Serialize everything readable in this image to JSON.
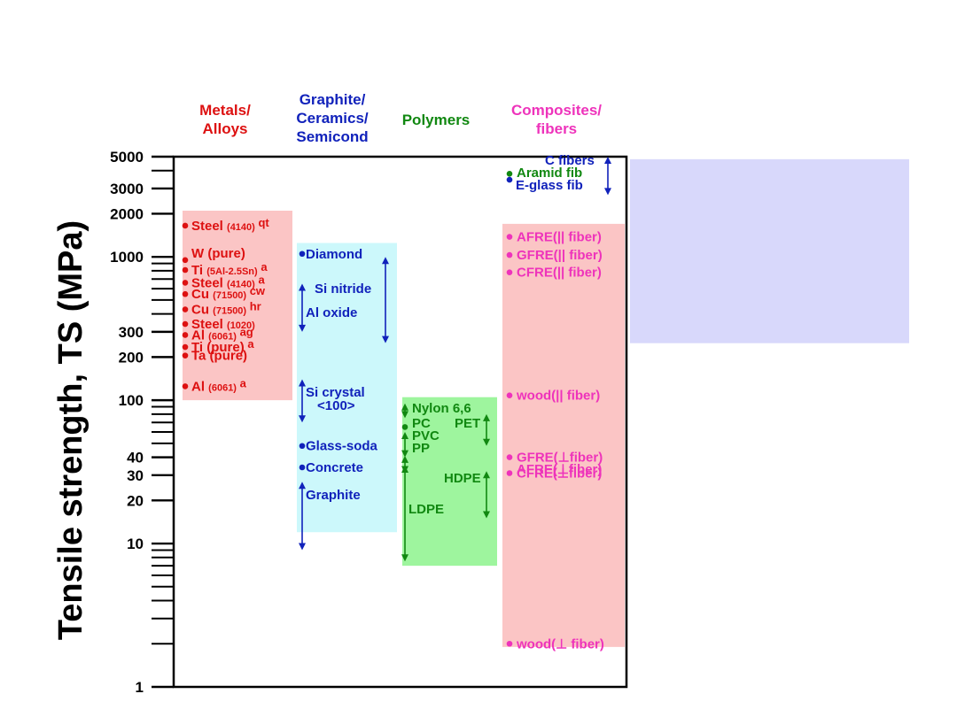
{
  "chart_data": {
    "type": "range",
    "ylabel": "Tensile strength, TS (MPa)",
    "yscale": "log",
    "ylim": [
      1,
      5000
    ],
    "ytick_labels": [
      {
        "value": 1,
        "label": "1"
      },
      {
        "value": 10,
        "label": "10"
      },
      {
        "value": 20,
        "label": "20"
      },
      {
        "value": 30,
        "label": "30"
      },
      {
        "value": 40,
        "label": "40"
      },
      {
        "value": 100,
        "label": "100"
      },
      {
        "value": 200,
        "label": "200"
      },
      {
        "value": 300,
        "label": "300"
      },
      {
        "value": 1000,
        "label": "1000"
      },
      {
        "value": 2000,
        "label": "2000"
      },
      {
        "value": 3000,
        "label": "3000"
      },
      {
        "value": 5000,
        "label": "5000"
      }
    ],
    "minor_ticks": [
      2,
      3,
      4,
      5,
      6,
      7,
      8,
      9,
      40,
      50,
      60,
      70,
      80,
      90,
      400,
      500,
      600,
      700,
      800,
      900,
      4000
    ],
    "colors": {
      "metals": "#dd1111",
      "ceramics": "#1122bb",
      "polymers": "#118811",
      "composites": "#ee33bb",
      "metals_fill": "#fbc5c5",
      "ceramics_fill": "#ccf8fb",
      "polymers_fill": "#9ef59e",
      "composites_fill": "#fbc5c5",
      "side_box_fill": "#d8d8fb"
    },
    "categories": [
      {
        "key": "metals",
        "header": [
          "Metals/",
          "Alloys"
        ],
        "range": [
          100,
          2100
        ],
        "items": [
          {
            "parts": [
              {
                "t": "Steel "
              },
              {
                "t": "(4140)",
                "s": "sub"
              },
              {
                "t": " qt",
                "s": "sup"
              }
            ],
            "value": 1650,
            "marker": "dot"
          },
          {
            "parts": [
              {
                "t": "W (pure)"
              }
            ],
            "value": 950,
            "marker": "dot"
          },
          {
            "parts": [
              {
                "t": "Ti "
              },
              {
                "t": "(5Al-2.5Sn)",
                "s": "sub"
              },
              {
                "t": " a",
                "s": "sup"
              }
            ],
            "value": 810,
            "marker": "dot"
          },
          {
            "parts": [
              {
                "t": "Steel "
              },
              {
                "t": "(4140)",
                "s": "sub"
              },
              {
                "t": " a",
                "s": "sup"
              }
            ],
            "value": 660,
            "marker": "dot"
          },
          {
            "parts": [
              {
                "t": "Cu "
              },
              {
                "t": "(71500)",
                "s": "sub"
              },
              {
                "t": " cw",
                "s": "sup"
              }
            ],
            "value": 550,
            "marker": "dot"
          },
          {
            "parts": [
              {
                "t": "Cu "
              },
              {
                "t": "(71500)",
                "s": "sub"
              },
              {
                "t": " hr",
                "s": "sup"
              }
            ],
            "value": 430,
            "marker": "dot"
          },
          {
            "parts": [
              {
                "t": "Steel "
              },
              {
                "t": "(1020)",
                "s": "sub"
              }
            ],
            "value": 340,
            "marker": "dot"
          },
          {
            "parts": [
              {
                "t": "Al "
              },
              {
                "t": "(6061)",
                "s": "sub"
              },
              {
                "t": " ag",
                "s": "sup"
              }
            ],
            "value": 285,
            "marker": "dot"
          },
          {
            "parts": [
              {
                "t": "Ti (pure)"
              },
              {
                "t": " a",
                "s": "sup"
              }
            ],
            "value": 235,
            "marker": "dot"
          },
          {
            "parts": [
              {
                "t": "Ta (pure)"
              }
            ],
            "value": 205,
            "marker": "dot"
          },
          {
            "parts": [
              {
                "t": "Al "
              },
              {
                "t": "(6061)",
                "s": "sub"
              },
              {
                "t": " a",
                "s": "sup"
              }
            ],
            "value": 125,
            "marker": "dot"
          }
        ]
      },
      {
        "key": "ceramics",
        "header": [
          "Graphite/",
          "Ceramics/",
          "Semicond"
        ],
        "range": [
          12,
          1250
        ],
        "items": [
          {
            "parts": [
              {
                "t": "Diamond"
              }
            ],
            "value": 1050,
            "marker": "dot"
          },
          {
            "parts": [
              {
                "t": "Si nitride"
              }
            ],
            "value": 620,
            "marker": "range",
            "range": [
              250,
              1000
            ]
          },
          {
            "parts": [
              {
                "t": "Al oxide"
              }
            ],
            "value": 450,
            "marker": "range",
            "range": [
              300,
              650
            ]
          },
          {
            "parts": [
              {
                "t": "Si crystal"
              }
            ],
            "value": 118,
            "marker": "range",
            "range": [
              70,
              140
            ]
          },
          {
            "parts": [
              {
                "t": "<100>"
              }
            ],
            "value": 95,
            "marker": "note"
          },
          {
            "parts": [
              {
                "t": "Glass-soda"
              }
            ],
            "value": 48,
            "marker": "dot"
          },
          {
            "parts": [
              {
                "t": "Concrete"
              }
            ],
            "value": 34,
            "marker": "dot"
          },
          {
            "parts": [
              {
                "t": "Graphite"
              }
            ],
            "value": 15.5,
            "marker": "range",
            "range": [
              9,
              27
            ]
          }
        ]
      },
      {
        "key": "polymers",
        "header": [
          "Polymers"
        ],
        "range": [
          7,
          105
        ],
        "items": [
          {
            "parts": [
              {
                "t": "Nylon 6,6"
              }
            ],
            "value": 88,
            "marker": "range",
            "range": [
              75,
              95
            ]
          },
          {
            "parts": [
              {
                "t": "PC"
              }
            ],
            "value": 65,
            "marker": "dot"
          },
          {
            "parts": [
              {
                "t": "PET"
              }
            ],
            "value": 64,
            "marker": "range",
            "range": [
              48,
              80
            ]
          },
          {
            "parts": [
              {
                "t": "PVC"
              }
            ],
            "value": 52,
            "marker": "range",
            "range": [
              40,
              60
            ]
          },
          {
            "parts": [
              {
                "t": "PP"
              }
            ],
            "value": 39,
            "marker": "range",
            "range": [
              31,
              41
            ]
          },
          {
            "parts": [
              {
                "t": "HDPE"
              }
            ],
            "value": 20,
            "marker": "range",
            "range": [
              15,
              32
            ]
          },
          {
            "parts": [
              {
                "t": "LDPE"
              }
            ],
            "value": 14,
            "marker": "range",
            "range": [
              7.5,
              35
            ]
          }
        ]
      },
      {
        "key": "composites",
        "header": [
          "Composites/",
          "fibers"
        ],
        "range": [
          1.9,
          1700
        ],
        "items": [
          {
            "parts": [
              {
                "t": "C fibers"
              }
            ],
            "value": 4700,
            "marker": "range",
            "range": [
              2700,
              5000
            ]
          },
          {
            "parts": [
              {
                "t": "Aramid fib"
              }
            ],
            "value": 3800,
            "marker": "dot",
            "color": "polymers"
          },
          {
            "parts": [
              {
                "t": "E-glass fib"
              }
            ],
            "value": 3450,
            "marker": "dot",
            "color": "ceramics"
          },
          {
            "parts": [
              {
                "t": "AFRE(|| fiber)"
              }
            ],
            "value": 1380,
            "marker": "dot"
          },
          {
            "parts": [
              {
                "t": "GFRE(|| fiber)"
              }
            ],
            "value": 1030,
            "marker": "dot"
          },
          {
            "parts": [
              {
                "t": "CFRE(|| fiber)"
              }
            ],
            "value": 780,
            "marker": "dot"
          },
          {
            "parts": [
              {
                "t": "wood(|| fiber)"
              }
            ],
            "value": 108,
            "marker": "dot"
          },
          {
            "parts": [
              {
                "t": "GFRE(⊥fiber)"
              }
            ],
            "value": 40,
            "marker": "dot"
          },
          {
            "parts": [
              {
                "t": "CFRE(⊥fiber)"
              }
            ],
            "value": 31,
            "marker": "dot"
          },
          {
            "parts": [
              {
                "t": "AFRE(⊥fiber)"
              }
            ],
            "value": 24,
            "marker": "note"
          },
          {
            "parts": [
              {
                "t": "wood(⊥ fiber)"
              }
            ],
            "value": 2,
            "marker": "dot"
          }
        ]
      }
    ],
    "side_box": {
      "range": [
        250,
        4800
      ],
      "text": ""
    }
  }
}
